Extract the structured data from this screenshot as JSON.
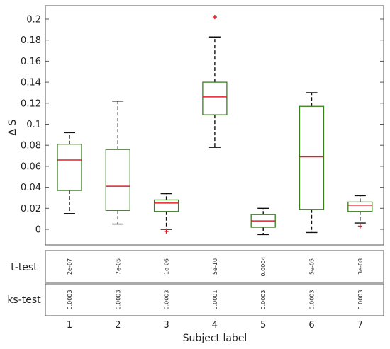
{
  "chart_data": {
    "type": "box",
    "ylabel": "Δ S",
    "xlabel": "Subject label",
    "ylim": [
      -0.015,
      0.212
    ],
    "yticks": [
      "0",
      "0.02",
      "0.04",
      "0.06",
      "0.08",
      "0.1",
      "0.12",
      "0.14",
      "0.16",
      "0.18",
      "0.2"
    ],
    "categories": [
      "1",
      "2",
      "3",
      "4",
      "5",
      "6",
      "7"
    ],
    "colors": {
      "box": "#3a7d1e",
      "median": "#e0202a",
      "outlier": "#e0202a",
      "whisker": "#111111"
    },
    "boxes": [
      {
        "label": "1",
        "whislo": 0.015,
        "q1": 0.037,
        "med": 0.066,
        "q3": 0.081,
        "whishi": 0.092,
        "fliers": []
      },
      {
        "label": "2",
        "whislo": 0.005,
        "q1": 0.018,
        "med": 0.041,
        "q3": 0.076,
        "whishi": 0.122,
        "fliers": []
      },
      {
        "label": "3",
        "whislo": 0.0,
        "q1": 0.017,
        "med": 0.025,
        "q3": 0.028,
        "whishi": 0.034,
        "fliers": [
          -0.002
        ]
      },
      {
        "label": "4",
        "whislo": 0.078,
        "q1": 0.109,
        "med": 0.126,
        "q3": 0.14,
        "whishi": 0.183,
        "fliers": [
          0.202
        ]
      },
      {
        "label": "5",
        "whislo": -0.005,
        "q1": 0.002,
        "med": 0.008,
        "q3": 0.014,
        "whishi": 0.02,
        "fliers": []
      },
      {
        "label": "6",
        "whislo": -0.003,
        "q1": 0.019,
        "med": 0.069,
        "q3": 0.117,
        "whishi": 0.13,
        "fliers": []
      },
      {
        "label": "7",
        "whislo": 0.006,
        "q1": 0.017,
        "med": 0.023,
        "q3": 0.026,
        "whishi": 0.032,
        "fliers": [
          0.003
        ]
      }
    ],
    "rows": [
      {
        "label": "t-test",
        "values": [
          "2e-07",
          "7e-05",
          "1e-06",
          "5e-10",
          "0.0004",
          "5e-05",
          "3e-08"
        ]
      },
      {
        "label": "ks-test",
        "values": [
          "0.0003",
          "0.0003",
          "0.0003",
          "0.0001",
          "0.0003",
          "0.0003",
          "0.0003"
        ]
      }
    ]
  }
}
